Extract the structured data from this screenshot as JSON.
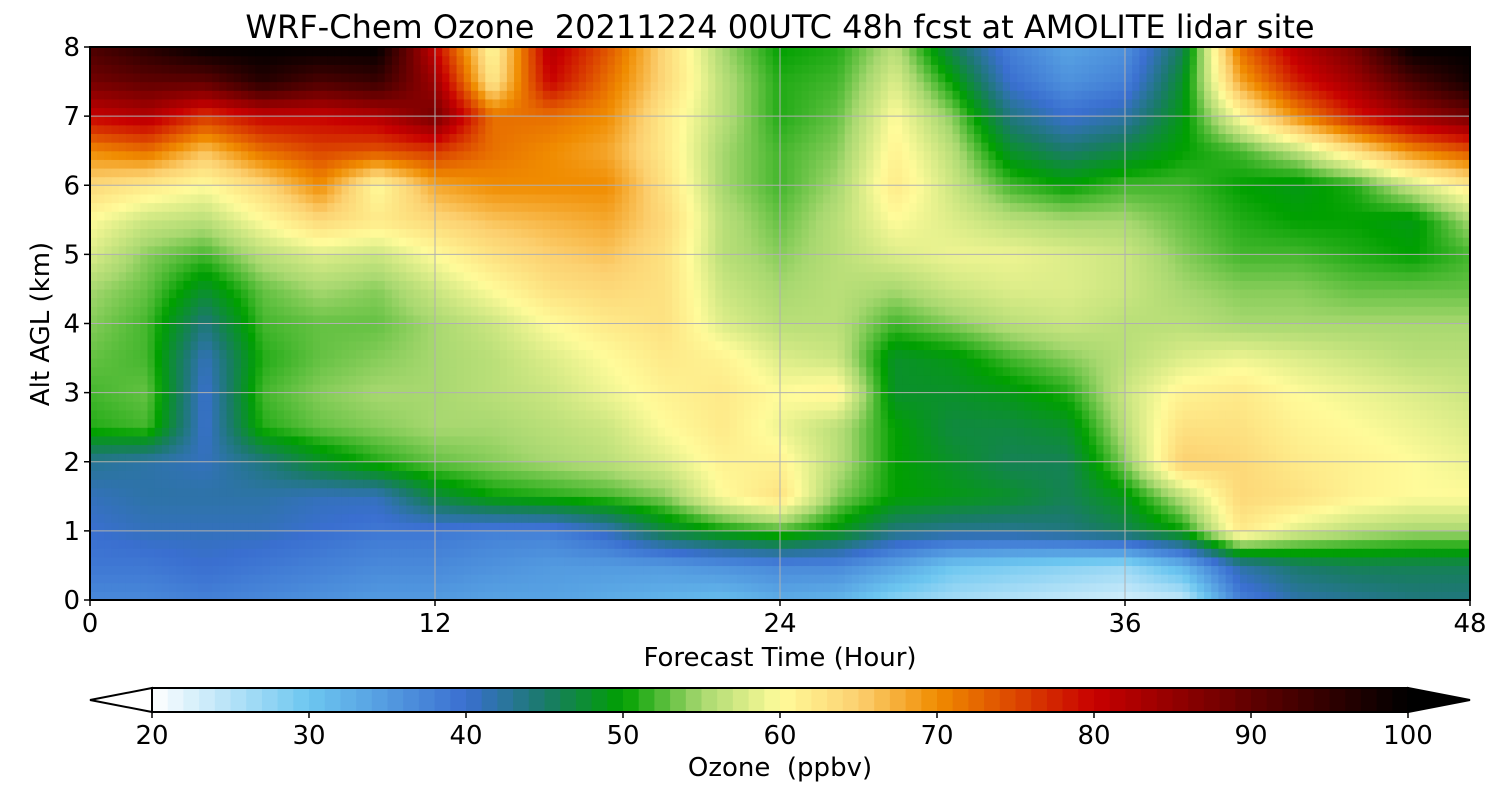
{
  "chart_data": {
    "type": "heatmap",
    "title": "WRF-Chem Ozone  20211224 00UTC 48h fcst at AMOLITE lidar site",
    "xlabel": "Forecast Time (Hour)",
    "ylabel": "Alt AGL (km)",
    "xlim": [
      0,
      48
    ],
    "ylim": [
      0,
      8
    ],
    "xticks": [
      0,
      12,
      24,
      36,
      48
    ],
    "yticks": [
      0,
      1,
      2,
      3,
      4,
      5,
      6,
      7,
      8
    ],
    "grid": true,
    "colorbar": {
      "label": "Ozone  (ppbv)",
      "min": 20,
      "max": 100,
      "ticks": [
        20,
        30,
        40,
        50,
        60,
        70,
        80,
        90,
        100
      ],
      "extend": "both",
      "color_stops": [
        {
          "value": 20,
          "color": "#ffffff"
        },
        {
          "value": 30,
          "color": "#6cc6f0"
        },
        {
          "value": 40,
          "color": "#3a6fd0"
        },
        {
          "value": 45,
          "color": "#1a7a6a"
        },
        {
          "value": 50,
          "color": "#00a000"
        },
        {
          "value": 55,
          "color": "#a8d870"
        },
        {
          "value": 60,
          "color": "#fffb9a"
        },
        {
          "value": 65,
          "color": "#fcd070"
        },
        {
          "value": 70,
          "color": "#f08c00"
        },
        {
          "value": 80,
          "color": "#c80000"
        },
        {
          "value": 90,
          "color": "#600000"
        },
        {
          "value": 100,
          "color": "#000000"
        }
      ]
    },
    "x_hours": [
      0,
      2,
      4,
      6,
      8,
      10,
      12,
      14,
      16,
      18,
      20,
      22,
      24,
      26,
      28,
      30,
      32,
      34,
      36,
      38,
      40,
      42,
      44,
      46,
      48
    ],
    "y_km": [
      0,
      0.5,
      1,
      1.5,
      2,
      2.5,
      3,
      3.5,
      4,
      4.5,
      5,
      5.5,
      6,
      6.5,
      7,
      7.5,
      8
    ],
    "values": [
      [
        37,
        37,
        38,
        37,
        36,
        35,
        35,
        34,
        34,
        33,
        32,
        31,
        33,
        32,
        28,
        26,
        25,
        24,
        23,
        24,
        38,
        42,
        43,
        44,
        44
      ],
      [
        39,
        39,
        40,
        39,
        38,
        37,
        37,
        36,
        35,
        35,
        35,
        36,
        37,
        37,
        34,
        30,
        29,
        28,
        27,
        32,
        42,
        45,
        46,
        46,
        46
      ],
      [
        40,
        41,
        41,
        41,
        40,
        39,
        39,
        38,
        38,
        41,
        47,
        50,
        52,
        49,
        44,
        43,
        43,
        44,
        46,
        50,
        62,
        58,
        56,
        55,
        55
      ],
      [
        41,
        42,
        42,
        42,
        41,
        41,
        47,
        50,
        51,
        52,
        54,
        60,
        63,
        54,
        50,
        49,
        48,
        46,
        49,
        56,
        64,
        63,
        61,
        60,
        60
      ],
      [
        43,
        42,
        41,
        44,
        48,
        51,
        53,
        54,
        55,
        56,
        58,
        61,
        61,
        56,
        50,
        48,
        46,
        46,
        54,
        65,
        64,
        62,
        61,
        60,
        59
      ],
      [
        51,
        52,
        40,
        51,
        53,
        54,
        55,
        55,
        56,
        57,
        60,
        62,
        59,
        56,
        50,
        47,
        47,
        48,
        56,
        63,
        63,
        61,
        60,
        59,
        58
      ],
      [
        52,
        53,
        40,
        52,
        54,
        55,
        55,
        56,
        57,
        59,
        61,
        62,
        60,
        61,
        48,
        48,
        49,
        51,
        57,
        61,
        62,
        60,
        59,
        58,
        57
      ],
      [
        53,
        52,
        41,
        51,
        53,
        54,
        55,
        56,
        58,
        60,
        62,
        61,
        58,
        57,
        48,
        49,
        52,
        54,
        56,
        58,
        59,
        58,
        57,
        56,
        56
      ],
      [
        54,
        52,
        44,
        52,
        53,
        53,
        55,
        57,
        60,
        62,
        63,
        58,
        56,
        56,
        52,
        54,
        56,
        57,
        56,
        56,
        55,
        55,
        55,
        55,
        55
      ],
      [
        55,
        53,
        48,
        53,
        55,
        54,
        57,
        60,
        63,
        64,
        63,
        57,
        55,
        56,
        55,
        57,
        58,
        58,
        57,
        55,
        54,
        54,
        53,
        53,
        53
      ],
      [
        58,
        54,
        52,
        56,
        58,
        57,
        60,
        63,
        65,
        66,
        63,
        56,
        54,
        56,
        58,
        59,
        59,
        58,
        57,
        54,
        52,
        52,
        51,
        50,
        52
      ],
      [
        60,
        57,
        56,
        60,
        64,
        62,
        64,
        66,
        67,
        68,
        64,
        56,
        53,
        56,
        60,
        58,
        56,
        55,
        55,
        53,
        51,
        50,
        50,
        49,
        55
      ],
      [
        64,
        62,
        60,
        64,
        70,
        60,
        68,
        70,
        70,
        70,
        63,
        55,
        52,
        55,
        62,
        57,
        52,
        50,
        52,
        52,
        50,
        49,
        51,
        57,
        62
      ],
      [
        70,
        72,
        66,
        72,
        75,
        74,
        76,
        72,
        70,
        68,
        62,
        55,
        52,
        54,
        61,
        56,
        48,
        45,
        47,
        50,
        52,
        56,
        63,
        70,
        74
      ],
      [
        80,
        82,
        76,
        80,
        80,
        82,
        88,
        72,
        72,
        70,
        62,
        56,
        51,
        53,
        60,
        54,
        44,
        40,
        42,
        49,
        60,
        70,
        78,
        84,
        88
      ],
      [
        88,
        90,
        90,
        96,
        92,
        94,
        84,
        62,
        80,
        72,
        64,
        56,
        51,
        52,
        58,
        50,
        40,
        36,
        38,
        48,
        68,
        78,
        84,
        92,
        98
      ],
      [
        92,
        96,
        100,
        100,
        100,
        100,
        80,
        60,
        82,
        74,
        64,
        55,
        50,
        51,
        56,
        46,
        38,
        34,
        36,
        46,
        72,
        82,
        88,
        100,
        100
      ]
    ]
  }
}
